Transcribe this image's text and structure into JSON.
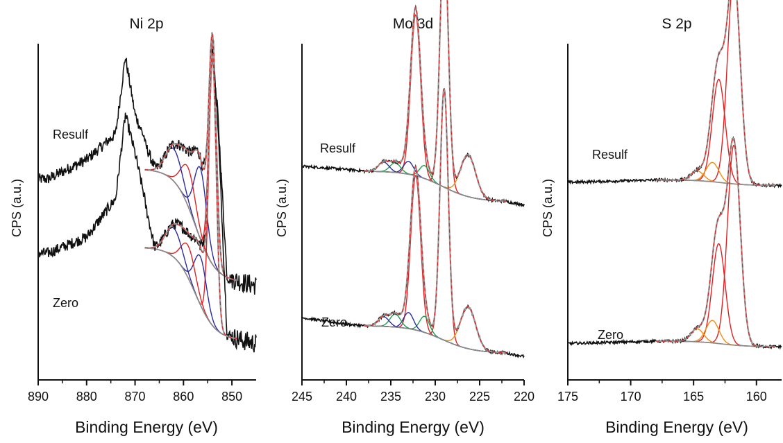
{
  "chart_data": [
    {
      "type": "line",
      "title": "Ni 2p",
      "xlabel": "Binding Energy (eV)",
      "ylabel": "CPS (a.u.)",
      "xlim": [
        890,
        845
      ],
      "x_reversed": true,
      "x_ticks": [
        890,
        880,
        870,
        860,
        850
      ],
      "y_ticks": "none",
      "grid": false,
      "stacked_spectra": [
        {
          "label": "Resulf",
          "background_points": [
            [
              888,
              0.58
            ],
            [
              880,
              0.64
            ],
            [
              874,
              0.72
            ],
            [
              872,
              0.96
            ],
            [
              870,
              0.78
            ],
            [
              866,
              0.63
            ],
            [
              862,
              0.58
            ],
            [
              858,
              0.57
            ],
            [
              855,
              0.66
            ],
            [
              854,
              0.95
            ],
            [
              853,
              0.82
            ],
            [
              851,
              0.28
            ],
            [
              848,
              0.26
            ],
            [
              845,
              0.25
            ]
          ],
          "fitted_components": [
            {
              "color": "#e02020",
              "center": 854.0,
              "amplitude": 0.68,
              "fwhm": 1.8
            },
            {
              "color": "#2a2aa0",
              "center": 856.5,
              "amplitude": 0.22,
              "fwhm": 3.0
            },
            {
              "color": "#e02020",
              "center": 859.0,
              "amplitude": 0.12,
              "fwhm": 3.5
            },
            {
              "color": "#2a2aa0",
              "center": 862.0,
              "amplitude": 0.1,
              "fwhm": 4.0
            }
          ]
        },
        {
          "label": "Zero",
          "background_points": [
            [
              888,
              0.35
            ],
            [
              880,
              0.4
            ],
            [
              874,
              0.52
            ],
            [
              872,
              0.78
            ],
            [
              870,
              0.66
            ],
            [
              866,
              0.38
            ],
            [
              862,
              0.33
            ],
            [
              858,
              0.34
            ],
            [
              855,
              0.42
            ],
            [
              854,
              1.0
            ],
            [
              853,
              0.8
            ],
            [
              851,
              0.1
            ],
            [
              848,
              0.08
            ],
            [
              845,
              0.07
            ]
          ],
          "fitted_components": [
            {
              "color": "#e02020",
              "center": 854.0,
              "amplitude": 0.82,
              "fwhm": 1.8
            },
            {
              "color": "#2a2aa0",
              "center": 856.5,
              "amplitude": 0.15,
              "fwhm": 3.0
            },
            {
              "color": "#e02020",
              "center": 859.0,
              "amplitude": 0.1,
              "fwhm": 3.5
            },
            {
              "color": "#2a2aa0",
              "center": 862.0,
              "amplitude": 0.09,
              "fwhm": 4.0
            }
          ]
        }
      ]
    },
    {
      "type": "line",
      "title": "Mo 3d",
      "xlabel": "Binding Energy (eV)",
      "ylabel": "CPS (a.u.)",
      "xlim": [
        245,
        220
      ],
      "x_reversed": true,
      "x_ticks": [
        245,
        240,
        235,
        230,
        225,
        220
      ],
      "y_ticks": "none",
      "grid": false,
      "stacked_spectra": [
        {
          "label": "Resulf",
          "background_points": [
            [
              245,
              0.62
            ],
            [
              240,
              0.61
            ],
            [
              236,
              0.6
            ],
            [
              232,
              0.58
            ],
            [
              228,
              0.55
            ],
            [
              225,
              0.52
            ],
            [
              222,
              0.51
            ],
            [
              220,
              0.5
            ]
          ],
          "fitted_components": [
            {
              "color": "#e02020",
              "center": 229.0,
              "amplitude": 0.78,
              "fwhm": 1.1
            },
            {
              "color": "#e02020",
              "center": 232.2,
              "amplitude": 0.5,
              "fwhm": 1.3
            },
            {
              "color": "#f08c10",
              "center": 226.3,
              "amplitude": 0.13,
              "fwhm": 2.0
            },
            {
              "color": "#1aa050",
              "center": 231.2,
              "amplitude": 0.04,
              "fwhm": 1.3
            },
            {
              "color": "#2a2aa0",
              "center": 233.0,
              "amplitude": 0.04,
              "fwhm": 1.3
            },
            {
              "color": "#1aa050",
              "center": 234.5,
              "amplitude": 0.03,
              "fwhm": 1.4
            },
            {
              "color": "#2a2aa0",
              "center": 235.8,
              "amplitude": 0.03,
              "fwhm": 1.4
            }
          ]
        },
        {
          "label": "Zero",
          "background_points": [
            [
              245,
              0.15
            ],
            [
              240,
              0.13
            ],
            [
              236,
              0.12
            ],
            [
              232,
              0.1
            ],
            [
              228,
              0.07
            ],
            [
              225,
              0.05
            ],
            [
              222,
              0.04
            ],
            [
              220,
              0.03
            ]
          ],
          "fitted_components": [
            {
              "color": "#e02020",
              "center": 229.0,
              "amplitude": 0.78,
              "fwhm": 1.1
            },
            {
              "color": "#e02020",
              "center": 232.2,
              "amplitude": 0.48,
              "fwhm": 1.3
            },
            {
              "color": "#f08c10",
              "center": 226.3,
              "amplitude": 0.13,
              "fwhm": 2.0
            },
            {
              "color": "#1aa050",
              "center": 231.2,
              "amplitude": 0.05,
              "fwhm": 1.3
            },
            {
              "color": "#2a2aa0",
              "center": 233.0,
              "amplitude": 0.05,
              "fwhm": 1.3
            },
            {
              "color": "#1aa050",
              "center": 234.5,
              "amplitude": 0.04,
              "fwhm": 1.4
            },
            {
              "color": "#2a2aa0",
              "center": 235.8,
              "amplitude": 0.03,
              "fwhm": 1.4
            }
          ]
        }
      ]
    },
    {
      "type": "line",
      "title": "S 2p",
      "xlabel": "Binding Energy (eV)",
      "ylabel": "CPS (a.u.)",
      "xlim": [
        175,
        158
      ],
      "x_reversed": true,
      "x_ticks": [
        175,
        170,
        165,
        160
      ],
      "y_ticks": "none",
      "grid": false,
      "stacked_spectra": [
        {
          "label": "Resulf",
          "background_points": [
            [
              175,
              0.57
            ],
            [
              170,
              0.575
            ],
            [
              166,
              0.58
            ],
            [
              163,
              0.58
            ],
            [
              160,
              0.56
            ],
            [
              158,
              0.56
            ]
          ],
          "fitted_components": [
            {
              "color": "#e02020",
              "center": 161.8,
              "amplitude": 0.64,
              "fwhm": 1.2
            },
            {
              "color": "#e02020",
              "center": 163.0,
              "amplitude": 0.32,
              "fwhm": 1.2
            },
            {
              "color": "#f08c10",
              "center": 163.5,
              "amplitude": 0.06,
              "fwhm": 1.2
            },
            {
              "color": "#f08c10",
              "center": 164.7,
              "amplitude": 0.03,
              "fwhm": 1.2
            }
          ]
        },
        {
          "label": "Zero",
          "background_points": [
            [
              175,
              0.07
            ],
            [
              170,
              0.075
            ],
            [
              166,
              0.08
            ],
            [
              163,
              0.08
            ],
            [
              160,
              0.06
            ],
            [
              158,
              0.06
            ]
          ],
          "fitted_components": [
            {
              "color": "#e02020",
              "center": 161.8,
              "amplitude": 0.62,
              "fwhm": 1.2
            },
            {
              "color": "#e02020",
              "center": 163.0,
              "amplitude": 0.31,
              "fwhm": 1.2
            },
            {
              "color": "#f08c10",
              "center": 163.5,
              "amplitude": 0.07,
              "fwhm": 1.2
            },
            {
              "color": "#f08c10",
              "center": 164.7,
              "amplitude": 0.04,
              "fwhm": 1.2
            }
          ]
        }
      ]
    }
  ],
  "colors": {
    "raw_data": "#111111",
    "envelope": "#9a9a9a",
    "envelope_dash": "#e02020",
    "baseline": "#8a8a8a"
  }
}
